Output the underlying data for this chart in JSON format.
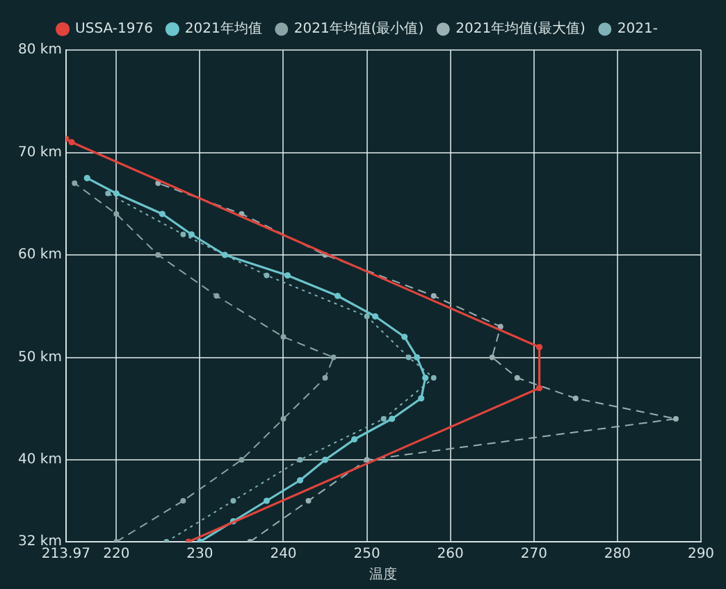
{
  "chart_data": {
    "type": "line",
    "xlabel": "温度",
    "legend": "top",
    "grid": true,
    "marker": "circle",
    "xlim": [
      213.97,
      290
    ],
    "xticks": [
      213.97,
      220,
      230,
      240,
      250,
      260,
      270,
      280,
      290
    ],
    "ylim": [
      32,
      80
    ],
    "yticks": [
      {
        "value": 32,
        "label": "32 km"
      },
      {
        "value": 40,
        "label": "40 km"
      },
      {
        "value": 50,
        "label": "50 km"
      },
      {
        "value": 60,
        "label": "60 km"
      },
      {
        "value": 70,
        "label": "70 km"
      },
      {
        "value": 80,
        "label": "80 km"
      }
    ],
    "series": [
      {
        "name": "USSA-1976",
        "color": "#e0443c",
        "line_style": "solid",
        "x": [
          228.65,
          270.65,
          270.65,
          214.65,
          213.97
        ],
        "values": [
          32,
          47,
          51,
          71,
          71.34
        ]
      },
      {
        "name": "2021年均值",
        "color": "#6cc4cc",
        "line_style": "solid",
        "x": [
          230,
          234,
          238,
          242,
          245,
          248.5,
          253,
          256.5,
          257,
          256,
          254.5,
          251,
          246.5,
          240.5,
          233,
          229,
          225.5,
          220,
          216.5
        ],
        "values": [
          32,
          34,
          36,
          38,
          40,
          42,
          44,
          46,
          48,
          50,
          52,
          54,
          56,
          58,
          60,
          62,
          64,
          66,
          67.5
        ]
      },
      {
        "name": "2021年均值(最小值)",
        "color": "#8aa4a6",
        "line_style": "dashed",
        "x": [
          220,
          228,
          235,
          240,
          245,
          246,
          240,
          232,
          225,
          220,
          215
        ],
        "values": [
          32,
          36,
          40,
          44,
          48,
          50,
          52,
          56,
          60,
          64,
          67
        ]
      },
      {
        "name": "2021年均值(最大值)",
        "color": "#9ab0b2",
        "line_style": "dashed",
        "x": [
          236,
          243,
          250,
          287,
          275,
          268,
          265,
          266,
          258,
          245,
          235,
          225
        ],
        "values": [
          32,
          36,
          40,
          44,
          46,
          48,
          50,
          53,
          56,
          60,
          64,
          67
        ]
      },
      {
        "name": "2021-",
        "color": "#7fb2b6",
        "line_style": "dotted",
        "x": [
          226,
          234,
          242,
          252,
          258,
          255,
          250,
          238,
          228,
          219
        ],
        "values": [
          32,
          36,
          40,
          44,
          48,
          50,
          54,
          58,
          62,
          66
        ]
      }
    ]
  }
}
